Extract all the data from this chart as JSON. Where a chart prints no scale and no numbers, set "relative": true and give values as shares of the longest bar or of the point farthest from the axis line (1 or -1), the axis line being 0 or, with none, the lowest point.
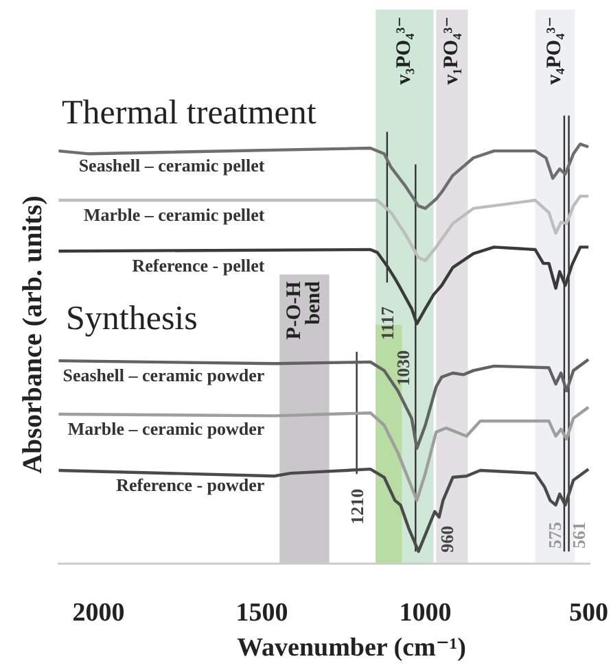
{
  "chart_data": {
    "type": "line",
    "relative": true,
    "xlabel": "Wavenumber (cm⁻¹)",
    "ylabel": "Absorbance (arb. units)",
    "xlim": [
      2125,
      495
    ],
    "xticks": [
      2000,
      1500,
      1000,
      500
    ],
    "annotations": [
      "Thermal treatment",
      "Synthesis",
      {
        "text": "960",
        "x": 960,
        "y": 0.03
      }
    ],
    "series": [
      {
        "name": "Seashell – ceramic pellet",
        "color": "#6e6e6e",
        "x": [
          2122,
          2029,
          1168,
          1126,
          1105,
          1063,
          1021,
          1000,
          967,
          950,
          916,
          853,
          790,
          664,
          631,
          610,
          589,
          572,
          547,
          526,
          501
        ],
        "values": [
          0.983,
          0.976,
          0.99,
          0.976,
          0.943,
          0.899,
          0.848,
          0.842,
          0.865,
          0.882,
          0.923,
          0.966,
          0.983,
          0.983,
          0.966,
          0.916,
          0.939,
          0.926,
          0.976,
          1.0,
          0.993
        ]
      },
      {
        "name": "Marble – ceramic pellet",
        "color": "#bdbdbd",
        "x": [
          2122,
          1168,
          1147,
          1105,
          1063,
          1021,
          1000,
          967,
          916,
          853,
          664,
          622,
          601,
          585,
          568,
          547,
          526,
          501
        ],
        "values": [
          0.862,
          0.862,
          0.862,
          0.832,
          0.781,
          0.721,
          0.714,
          0.747,
          0.805,
          0.842,
          0.862,
          0.832,
          0.781,
          0.808,
          0.805,
          0.848,
          0.872,
          0.872
        ]
      },
      {
        "name": "Reference - pellet",
        "color": "#3a3a3a",
        "x": [
          2122,
          1168,
          1147,
          1114,
          1093,
          1076,
          1042,
          1026,
          1000,
          975,
          950,
          916,
          853,
          790,
          664,
          639,
          622,
          601,
          589,
          572,
          551,
          526,
          501
        ],
        "values": [
          0.737,
          0.741,
          0.734,
          0.697,
          0.67,
          0.646,
          0.596,
          0.559,
          0.596,
          0.63,
          0.653,
          0.697,
          0.731,
          0.747,
          0.741,
          0.707,
          0.707,
          0.646,
          0.687,
          0.653,
          0.704,
          0.747,
          0.747
        ]
      },
      {
        "name": "Seashell – ceramic powder",
        "color": "#626262",
        "x": [
          2122,
          1462,
          1168,
          1126,
          1084,
          1042,
          1026,
          1000,
          967,
          950,
          916,
          883,
          853,
          790,
          622,
          601,
          585,
          568,
          547,
          501
        ],
        "values": [
          0.468,
          0.461,
          0.465,
          0.444,
          0.394,
          0.327,
          0.253,
          0.31,
          0.404,
          0.428,
          0.438,
          0.434,
          0.444,
          0.455,
          0.451,
          0.411,
          0.438,
          0.394,
          0.444,
          0.471
        ]
      },
      {
        "name": "Marble – ceramic powder",
        "color": "#9e9e9e",
        "x": [
          2122,
          1462,
          1168,
          1126,
          1084,
          1042,
          1026,
          1000,
          967,
          937,
          874,
          832,
          622,
          601,
          585,
          568,
          547,
          501
        ],
        "values": [
          0.337,
          0.333,
          0.34,
          0.31,
          0.242,
          0.158,
          0.125,
          0.192,
          0.293,
          0.303,
          0.283,
          0.32,
          0.32,
          0.283,
          0.3,
          0.276,
          0.327,
          0.354
        ]
      },
      {
        "name": "Reference - powder",
        "color": "#4a4a4a",
        "x": [
          2122,
          1462,
          1412,
          1168,
          1126,
          1093,
          1076,
          1051,
          1021,
          992,
          971,
          958,
          946,
          916,
          874,
          832,
          664,
          635,
          618,
          601,
          589,
          572,
          547,
          501
        ],
        "values": [
          0.199,
          0.185,
          0.192,
          0.202,
          0.182,
          0.125,
          0.114,
          0.057,
          0.0,
          0.057,
          0.098,
          0.084,
          0.125,
          0.182,
          0.185,
          0.199,
          0.192,
          0.158,
          0.125,
          0.114,
          0.141,
          0.114,
          0.175,
          0.202
        ]
      }
    ],
    "bands": [
      {
        "axis": "x",
        "from": 1152,
        "to": 975,
        "label": "v₃PO₄³⁻",
        "color": "#cfe7d6"
      },
      {
        "axis": "x",
        "from": 1152,
        "to": 1072,
        "color": "#b9dca3"
      },
      {
        "axis": "x",
        "from": 967,
        "to": 870,
        "label": "v₁PO₄³⁻",
        "color": "#e2e0e3"
      },
      {
        "axis": "x",
        "from": 664,
        "to": 543,
        "label": "v₄PO₄³⁻",
        "color": "#eff0f3"
      },
      {
        "axis": "x",
        "from": 1446,
        "to": 1294,
        "label": "P-O-H bend",
        "color": "#c9c7c9"
      }
    ],
    "ref_lines": [
      {
        "axis": "x",
        "value": 1117,
        "label": "1117",
        "color": "#333333"
      },
      {
        "axis": "x",
        "value": 1030,
        "label": "1030",
        "color": "#333333"
      },
      {
        "axis": "x",
        "value": 1210,
        "label": "1210",
        "color": "#333333"
      },
      {
        "axis": "x",
        "value": 575,
        "label": "575",
        "color": "#333333"
      },
      {
        "axis": "x",
        "value": 561,
        "label": "561",
        "color": "#333333"
      }
    ]
  }
}
